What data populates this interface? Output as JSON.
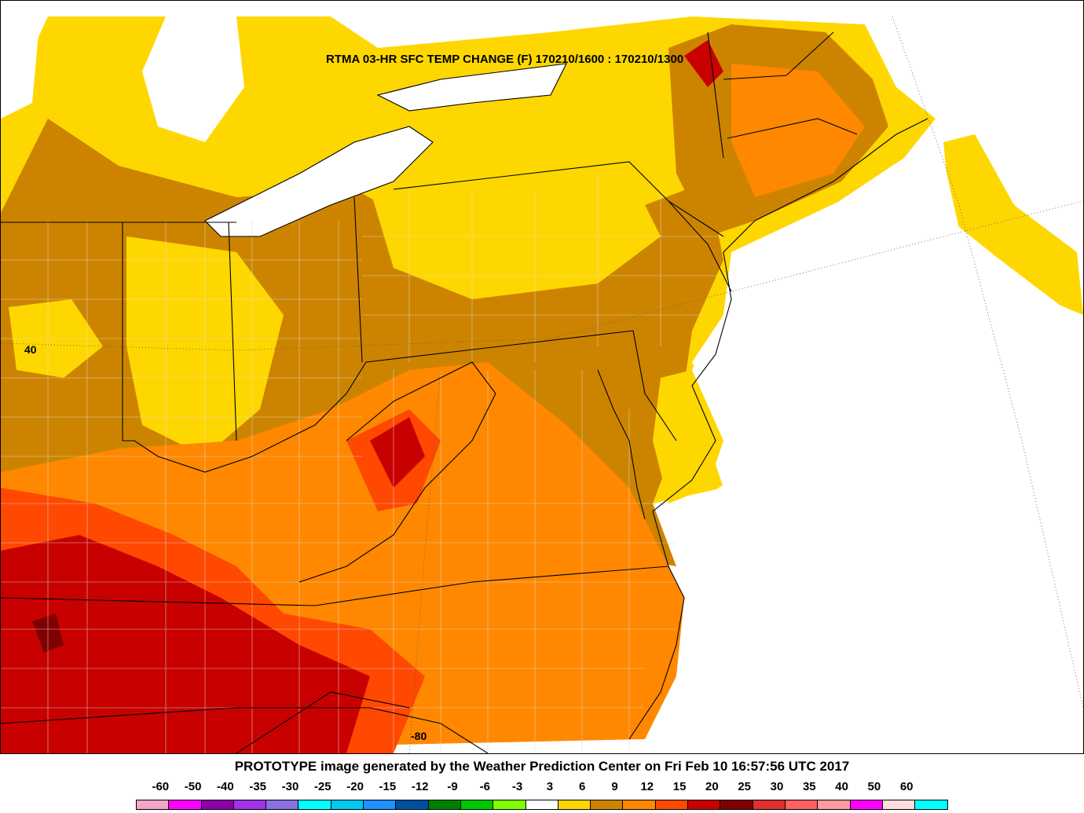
{
  "map": {
    "title": "RTMA 03-HR SFC TEMP CHANGE (F) 170210/1600 : 170210/1300",
    "lat_label": "40",
    "lon_label": "-80"
  },
  "footer": {
    "credit": "PROTOTYPE image generated by the Weather Prediction Center on Fri Feb 10 16:57:56 UTC 2017"
  },
  "legend": {
    "labels": [
      "-60",
      "-50",
      "-40",
      "-35",
      "-30",
      "-25",
      "-20",
      "-15",
      "-12",
      "-9",
      "-6",
      "-3",
      "3",
      "6",
      "9",
      "12",
      "15",
      "20",
      "25",
      "30",
      "35",
      "40",
      "50",
      "60"
    ],
    "colors": [
      "#f4a6c8",
      "#ff00ff",
      "#8b00a8",
      "#a033e8",
      "#8a70e0",
      "#00ffff",
      "#00c8f0",
      "#1e90ff",
      "#0050a0",
      "#008000",
      "#00c800",
      "#80ff00",
      "#ffffff",
      "#ffd700",
      "#cc8400",
      "#ff8800",
      "#ff4800",
      "#c80000",
      "#800000",
      "#e03030",
      "#ff6060",
      "#ff9aa0",
      "#ff00ff",
      "#ffdcdc",
      "#00ffff"
    ]
  }
}
